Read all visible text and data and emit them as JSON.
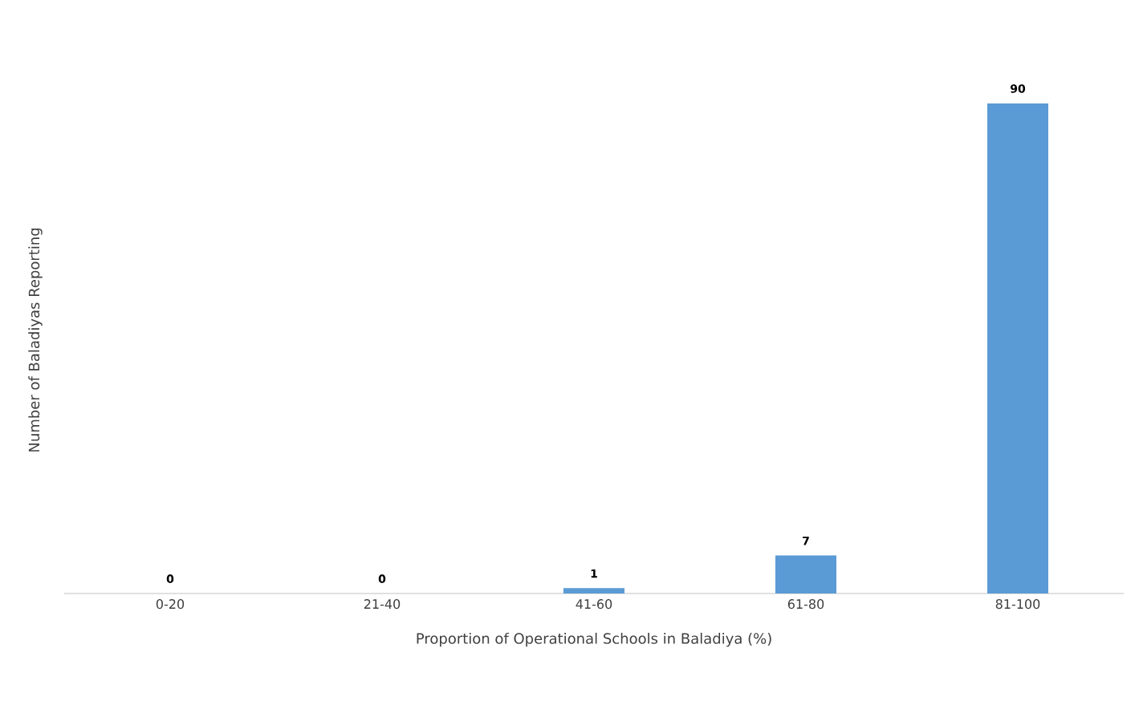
{
  "chart_data": {
    "type": "bar",
    "xlabel": "Proportion of Operational Schools in Baladiya (%)",
    "ylabel": "Number of Baladiyas Reporting",
    "categories": [
      "0-20",
      "21-40",
      "41-60",
      "61-80",
      "81-100"
    ],
    "values": [
      0,
      0,
      1,
      7,
      90
    ],
    "color": "#5b9bd5",
    "data_labels": true
  }
}
